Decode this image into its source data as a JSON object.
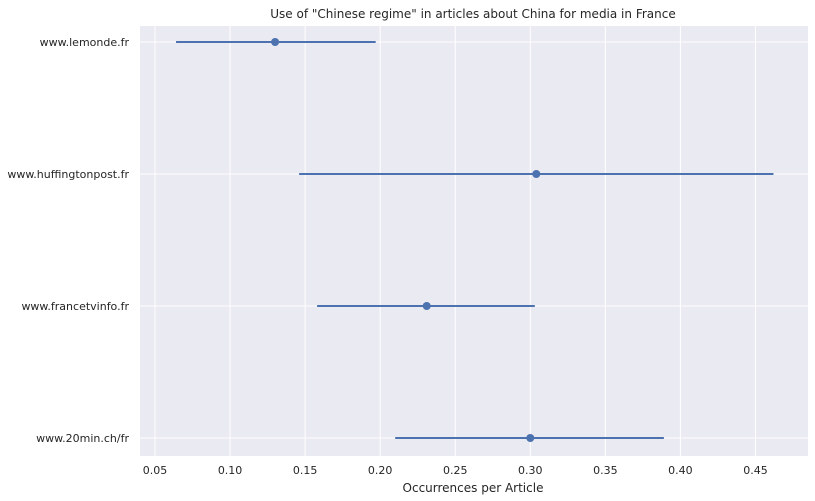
{
  "chart_data": {
    "type": "scatter",
    "title": "Use of \"Chinese regime\" in articles about China for media in France",
    "xlabel": "Occurrences per Article",
    "ylabel": "",
    "xlim": [
      0.04,
      0.485
    ],
    "x_ticks": [
      0.05,
      0.1,
      0.15,
      0.2,
      0.25,
      0.3,
      0.35,
      0.4,
      0.45
    ],
    "x_tick_labels": [
      "0.05",
      "0.10",
      "0.15",
      "0.20",
      "0.25",
      "0.30",
      "0.35",
      "0.40",
      "0.45"
    ],
    "categories": [
      "www.lemonde.fr",
      "www.huffingtonpost.fr",
      "www.francetvinfo.fr",
      "www.20min.ch/fr"
    ],
    "series": [
      {
        "estimate": [
          0.13,
          0.304,
          0.231,
          0.3
        ],
        "ci_low": [
          0.064,
          0.146,
          0.158,
          0.21
        ],
        "ci_high": [
          0.197,
          0.462,
          0.303,
          0.389
        ]
      }
    ],
    "grid": true,
    "colors": {
      "series": "#4c72b0",
      "background": "#eaeaf2",
      "grid": "#ffffff"
    }
  }
}
